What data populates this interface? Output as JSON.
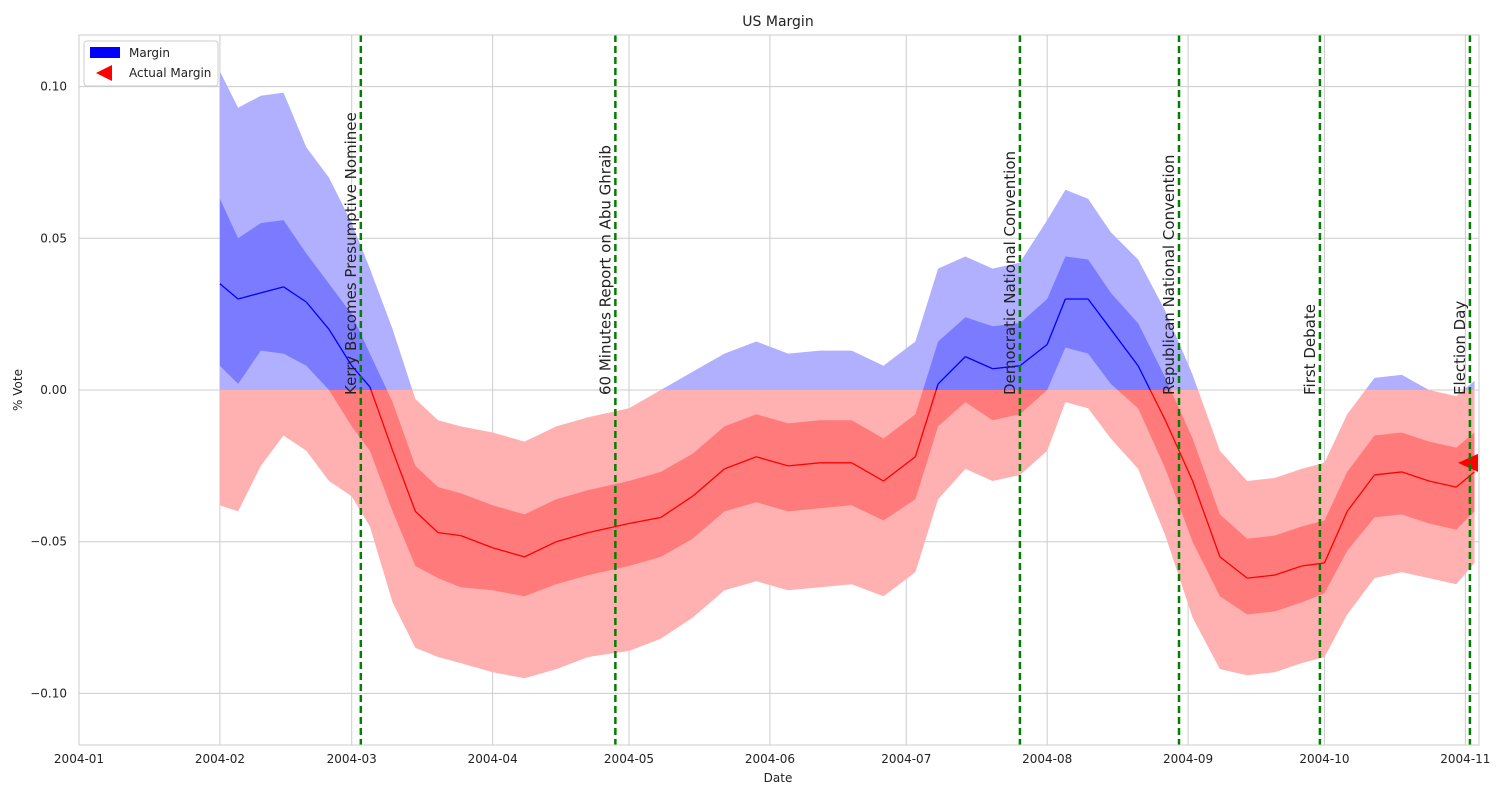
{
  "chart_data": {
    "type": "area",
    "title": "US Margin",
    "xlabel": "Date",
    "ylabel": "% Vote",
    "ylim": [
      -0.117,
      0.117
    ],
    "xlim": [
      "2004-01-01",
      "2004-11-04"
    ],
    "grid": true,
    "legend_position": "top-left",
    "legend": [
      {
        "label": "Margin",
        "marker": "patch",
        "color": "#0000ff"
      },
      {
        "label": "Actual Margin",
        "marker": "triangle-left",
        "color": "#ff0000"
      }
    ],
    "x_ticks": [
      "2004-01",
      "2004-02",
      "2004-03",
      "2004-04",
      "2004-05",
      "2004-06",
      "2004-07",
      "2004-08",
      "2004-09",
      "2004-10",
      "2004-11"
    ],
    "x_tick_dates": [
      "2004-01-01",
      "2004-02-01",
      "2004-03-01",
      "2004-04-01",
      "2004-05-01",
      "2004-06-01",
      "2004-07-01",
      "2004-08-01",
      "2004-09-01",
      "2004-10-01",
      "2004-11-01"
    ],
    "y_ticks": [
      -0.1,
      -0.05,
      0.0,
      0.05,
      0.1
    ],
    "y_tick_labels": [
      "−0.10",
      "−0.05",
      "0.00",
      "0.05",
      "0.10"
    ],
    "colors": {
      "positive_line": "#0000ff",
      "negative_line": "#ff0000",
      "positive_outer": "#b0b0ff",
      "positive_inner": "#7b7bff",
      "negative_outer": "#ffb0b0",
      "negative_inner": "#ff7b7b",
      "event_line": "#008000",
      "grid": "#cccccc"
    },
    "series": [
      {
        "name": "Margin",
        "x": [
          "2004-02-01",
          "2004-02-05",
          "2004-02-10",
          "2004-02-15",
          "2004-02-20",
          "2004-02-25",
          "2004-03-01",
          "2004-03-05",
          "2004-03-10",
          "2004-03-15",
          "2004-03-20",
          "2004-03-25",
          "2004-04-01",
          "2004-04-08",
          "2004-04-15",
          "2004-04-22",
          "2004-05-01",
          "2004-05-08",
          "2004-05-15",
          "2004-05-22",
          "2004-05-29",
          "2004-06-05",
          "2004-06-12",
          "2004-06-19",
          "2004-06-26",
          "2004-07-03",
          "2004-07-08",
          "2004-07-14",
          "2004-07-20",
          "2004-07-26",
          "2004-08-01",
          "2004-08-05",
          "2004-08-10",
          "2004-08-15",
          "2004-08-21",
          "2004-08-27",
          "2004-09-02",
          "2004-09-08",
          "2004-09-14",
          "2004-09-20",
          "2004-09-26",
          "2004-10-01",
          "2004-10-06",
          "2004-10-12",
          "2004-10-18",
          "2004-10-24",
          "2004-10-30",
          "2004-11-03"
        ],
        "y": [
          0.035,
          0.03,
          0.032,
          0.034,
          0.029,
          0.02,
          0.008,
          0.001,
          -0.02,
          -0.04,
          -0.047,
          -0.048,
          -0.052,
          -0.055,
          -0.05,
          -0.047,
          -0.044,
          -0.042,
          -0.035,
          -0.026,
          -0.022,
          -0.025,
          -0.024,
          -0.024,
          -0.03,
          -0.022,
          0.002,
          0.011,
          0.007,
          0.008,
          0.015,
          0.03,
          0.03,
          0.02,
          0.008,
          -0.01,
          -0.03,
          -0.055,
          -0.062,
          -0.061,
          -0.058,
          -0.057,
          -0.04,
          -0.028,
          -0.027,
          -0.03,
          -0.032,
          -0.027
        ],
        "inner_low": [
          0.008,
          0.002,
          0.013,
          0.012,
          0.008,
          0.0,
          -0.012,
          -0.02,
          -0.04,
          -0.058,
          -0.062,
          -0.065,
          -0.066,
          -0.068,
          -0.064,
          -0.061,
          -0.058,
          -0.055,
          -0.049,
          -0.04,
          -0.037,
          -0.04,
          -0.039,
          -0.038,
          -0.043,
          -0.036,
          -0.012,
          -0.004,
          -0.01,
          -0.008,
          0.0,
          0.014,
          0.012,
          0.002,
          -0.006,
          -0.026,
          -0.05,
          -0.068,
          -0.074,
          -0.073,
          -0.07,
          -0.067,
          -0.053,
          -0.042,
          -0.041,
          -0.044,
          -0.046,
          -0.04
        ],
        "inner_high": [
          0.063,
          0.05,
          0.055,
          0.056,
          0.045,
          0.035,
          0.025,
          0.012,
          -0.004,
          -0.025,
          -0.032,
          -0.034,
          -0.038,
          -0.041,
          -0.036,
          -0.033,
          -0.03,
          -0.027,
          -0.021,
          -0.012,
          -0.008,
          -0.011,
          -0.01,
          -0.01,
          -0.016,
          -0.008,
          0.016,
          0.024,
          0.021,
          0.022,
          0.03,
          0.044,
          0.043,
          0.032,
          0.022,
          0.004,
          -0.016,
          -0.041,
          -0.049,
          -0.048,
          -0.045,
          -0.043,
          -0.027,
          -0.015,
          -0.014,
          -0.017,
          -0.019,
          -0.014
        ],
        "outer_low": [
          -0.038,
          -0.04,
          -0.025,
          -0.015,
          -0.02,
          -0.03,
          -0.035,
          -0.045,
          -0.07,
          -0.085,
          -0.088,
          -0.09,
          -0.093,
          -0.095,
          -0.092,
          -0.088,
          -0.086,
          -0.082,
          -0.075,
          -0.066,
          -0.063,
          -0.066,
          -0.065,
          -0.064,
          -0.068,
          -0.06,
          -0.036,
          -0.026,
          -0.03,
          -0.028,
          -0.02,
          -0.004,
          -0.006,
          -0.016,
          -0.026,
          -0.048,
          -0.075,
          -0.092,
          -0.094,
          -0.093,
          -0.09,
          -0.088,
          -0.074,
          -0.062,
          -0.06,
          -0.062,
          -0.064,
          -0.057
        ],
        "outer_high": [
          0.105,
          0.093,
          0.097,
          0.098,
          0.08,
          0.07,
          0.055,
          0.04,
          0.02,
          -0.003,
          -0.01,
          -0.012,
          -0.014,
          -0.017,
          -0.012,
          -0.009,
          -0.006,
          0.0,
          0.006,
          0.012,
          0.016,
          0.012,
          0.013,
          0.013,
          0.008,
          0.016,
          0.04,
          0.044,
          0.04,
          0.042,
          0.056,
          0.066,
          0.063,
          0.052,
          0.043,
          0.026,
          0.005,
          -0.02,
          -0.03,
          -0.029,
          -0.026,
          -0.024,
          -0.008,
          0.004,
          0.005,
          0.0,
          -0.002,
          0.003
        ]
      }
    ],
    "actual_margin": {
      "label": "Actual Margin",
      "x": "2004-11-04",
      "y": -0.024
    },
    "events": [
      {
        "date": "2004-03-03",
        "label": "Kerry Becomes Presumptive Nominee"
      },
      {
        "date": "2004-04-28",
        "label": "60 Minutes Report on Abu Ghraib"
      },
      {
        "date": "2004-07-26",
        "label": "Democratic National Convention"
      },
      {
        "date": "2004-08-30",
        "label": "Republican National Convention"
      },
      {
        "date": "2004-09-30",
        "label": "First Debate"
      },
      {
        "date": "2004-11-02",
        "label": "Election Day"
      }
    ]
  }
}
